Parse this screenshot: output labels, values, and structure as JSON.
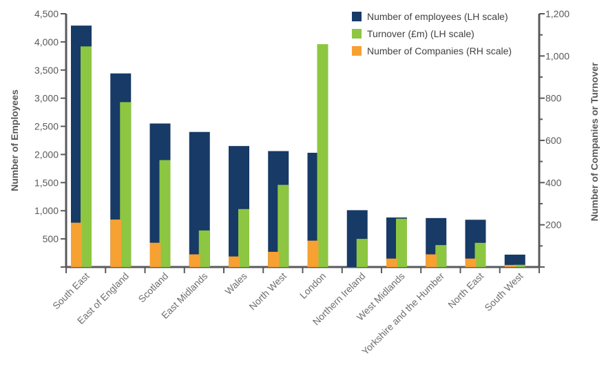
{
  "chart_data": {
    "type": "bar",
    "categories": [
      "South East",
      "East of England",
      "Scotland",
      "East Midlands",
      "Wales",
      "North West",
      "London",
      "Northern Ireland",
      "West Midlands",
      "Yorkshire and the Humber",
      "North East",
      "South West"
    ],
    "series": [
      {
        "name": "Number of employees (LH scale)",
        "axis": "left",
        "color": "#173a66",
        "values": [
          4290,
          3440,
          2550,
          2400,
          2150,
          2060,
          2030,
          1010,
          880,
          870,
          840,
          220
        ]
      },
      {
        "name": "Turnover (£m) (LH scale)",
        "axis": "left",
        "color": "#8dc641",
        "values": [
          3920,
          2930,
          1900,
          650,
          1030,
          1460,
          3960,
          500,
          860,
          390,
          430,
          40
        ]
      },
      {
        "name": "Number of Companies (RH scale)",
        "axis": "right",
        "color": "#f7a132",
        "values": [
          210,
          225,
          115,
          60,
          50,
          72,
          125,
          0,
          40,
          60,
          40,
          10
        ]
      }
    ],
    "ylabel": "Number of Employees",
    "y2label": "Number of Companies or Turnover",
    "ylim": [
      0,
      4500
    ],
    "y2lim": [
      0,
      1200
    ],
    "yticks": [
      "4,500",
      "4,000",
      "3,500",
      "3,000",
      "2,500",
      "2,000",
      "1,500",
      "1,000",
      "500"
    ],
    "y2ticks": [
      "1,200",
      "1,000",
      "800",
      "600",
      "400",
      "200"
    ],
    "legend_position": "top-right",
    "grid": false
  }
}
